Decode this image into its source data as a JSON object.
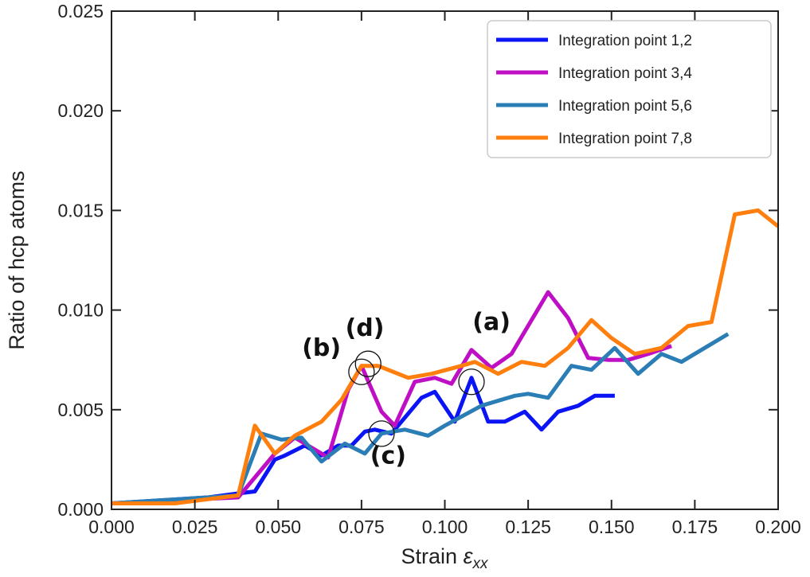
{
  "chart_data": {
    "type": "line",
    "title": "",
    "xlabel": "Strain",
    "xlabel_symbol": "ε",
    "xlabel_subscript": "xx",
    "ylabel": "Ratio of hcp atoms",
    "xlim": [
      0.0,
      0.2
    ],
    "ylim": [
      0.0,
      0.025
    ],
    "xticks": [
      "0.000",
      "0.025",
      "0.050",
      "0.075",
      "0.100",
      "0.125",
      "0.150",
      "0.175",
      "0.200"
    ],
    "yticks": [
      "0.000",
      "0.005",
      "0.010",
      "0.015",
      "0.020",
      "0.025"
    ],
    "grid": false,
    "legend_position": "top-right",
    "series": [
      {
        "name": "Integration point 1,2",
        "color": "#0a14f5",
        "x": [
          0,
          0.029,
          0.038,
          0.043,
          0.049,
          0.052,
          0.058,
          0.063,
          0.068,
          0.072,
          0.076,
          0.079,
          0.084,
          0.093,
          0.097,
          0.103,
          0.108,
          0.113,
          0.118,
          0.124,
          0.129,
          0.134,
          0.14,
          0.145,
          0.151
        ],
        "y": [
          0.0003,
          0.0006,
          0.0008,
          0.0009,
          0.0025,
          0.0027,
          0.0032,
          0.0027,
          0.0032,
          0.0032,
          0.0039,
          0.004,
          0.0038,
          0.0056,
          0.0059,
          0.0044,
          0.0066,
          0.0044,
          0.0044,
          0.0049,
          0.004,
          0.0049,
          0.0052,
          0.0057,
          0.0057
        ]
      },
      {
        "name": "Integration point 3,4",
        "color": "#bf0fc4",
        "x": [
          0,
          0.038,
          0.043,
          0.049,
          0.055,
          0.061,
          0.065,
          0.071,
          0.075,
          0.081,
          0.085,
          0.091,
          0.097,
          0.102,
          0.108,
          0.114,
          0.12,
          0.131,
          0.137,
          0.143,
          0.149,
          0.155,
          0.161,
          0.168
        ],
        "y": [
          0.0003,
          0.0006,
          0.0016,
          0.0028,
          0.0036,
          0.003,
          0.0026,
          0.006,
          0.0072,
          0.0049,
          0.0042,
          0.0064,
          0.0066,
          0.0063,
          0.008,
          0.0071,
          0.0078,
          0.0109,
          0.0096,
          0.0076,
          0.0075,
          0.0075,
          0.0078,
          0.0082
        ]
      },
      {
        "name": "Integration point 5,6",
        "color": "#2a7db5",
        "x": [
          0,
          0.038,
          0.045,
          0.051,
          0.057,
          0.063,
          0.07,
          0.076,
          0.081,
          0.088,
          0.095,
          0.1,
          0.111,
          0.121,
          0.125,
          0.131,
          0.138,
          0.144,
          0.151,
          0.158,
          0.165,
          0.171,
          0.185
        ],
        "y": [
          0.0003,
          0.0007,
          0.0038,
          0.0035,
          0.0036,
          0.0024,
          0.0033,
          0.0028,
          0.0038,
          0.004,
          0.0037,
          0.0042,
          0.0052,
          0.0057,
          0.0058,
          0.0056,
          0.0072,
          0.007,
          0.0081,
          0.0068,
          0.0078,
          0.0074,
          0.0088
        ]
      },
      {
        "name": "Integration point 7,8",
        "color": "#ff7f0e",
        "x": [
          0,
          0.019,
          0.038,
          0.043,
          0.049,
          0.055,
          0.063,
          0.069,
          0.075,
          0.08,
          0.089,
          0.096,
          0.105,
          0.109,
          0.116,
          0.123,
          0.13,
          0.137,
          0.144,
          0.15,
          0.157,
          0.165,
          0.173,
          0.18,
          0.187,
          0.194,
          0.2
        ],
        "y": [
          0.0003,
          0.0003,
          0.0007,
          0.0042,
          0.0028,
          0.0037,
          0.0044,
          0.0055,
          0.0072,
          0.0072,
          0.0066,
          0.0068,
          0.0072,
          0.0074,
          0.0068,
          0.0074,
          0.0072,
          0.0081,
          0.0095,
          0.0086,
          0.0078,
          0.0081,
          0.0092,
          0.0094,
          0.0148,
          0.015,
          0.0142
        ]
      }
    ],
    "annotations": [
      {
        "label": "(a)",
        "text_x": 0.114,
        "text_y": 0.009,
        "circle_x": 0.108,
        "circle_y": 0.0064
      },
      {
        "label": "(b)",
        "text_x": 0.063,
        "text_y": 0.0077,
        "circle_x": 0.075,
        "circle_y": 0.0069
      },
      {
        "label": "(c)",
        "text_x": 0.083,
        "text_y": 0.0023,
        "circle_x": 0.081,
        "circle_y": 0.0038
      },
      {
        "label": "(d)",
        "text_x": 0.076,
        "text_y": 0.0087,
        "circle_x": 0.077,
        "circle_y": 0.0073
      }
    ]
  }
}
